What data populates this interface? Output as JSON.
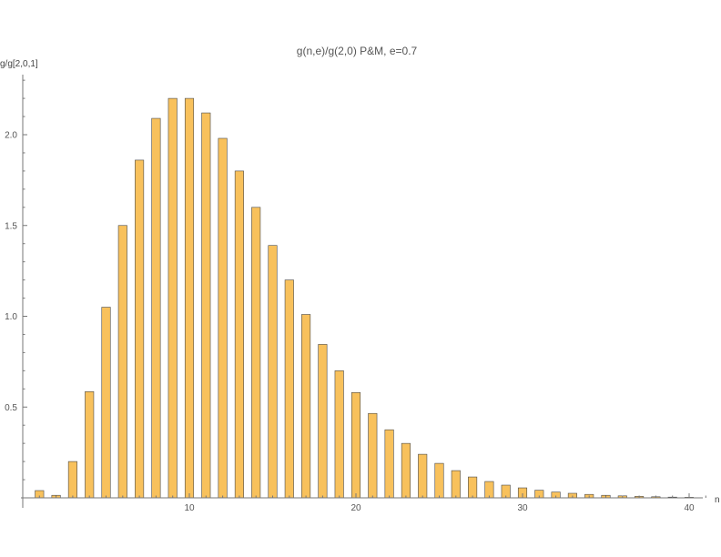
{
  "chart_data": {
    "type": "bar",
    "title": "g(n,e)/g(2,0) P&M, e=0.7",
    "xlabel": "n",
    "ylabel": "g/g[2,0,1]",
    "x": [
      1,
      2,
      3,
      4,
      5,
      6,
      7,
      8,
      9,
      10,
      11,
      12,
      13,
      14,
      15,
      16,
      17,
      18,
      19,
      20,
      21,
      22,
      23,
      24,
      25,
      26,
      27,
      28,
      29,
      30,
      31,
      32,
      33,
      34,
      35,
      36,
      37,
      38,
      39,
      40
    ],
    "values": [
      0.04,
      0.014,
      0.2,
      0.585,
      1.05,
      1.5,
      1.86,
      2.09,
      2.2,
      2.2,
      2.12,
      1.98,
      1.8,
      1.6,
      1.39,
      1.2,
      1.01,
      0.845,
      0.7,
      0.58,
      0.465,
      0.375,
      0.3,
      0.24,
      0.19,
      0.15,
      0.115,
      0.09,
      0.07,
      0.055,
      0.042,
      0.032,
      0.025,
      0.019,
      0.014,
      0.011,
      0.008,
      0.006,
      0.004,
      0.003
    ],
    "xlim": [
      0,
      41
    ],
    "ylim": [
      0,
      2.33
    ],
    "x_ticks": [
      "10",
      "20",
      "30",
      "40"
    ],
    "y_ticks": [
      "0.5",
      "1.0",
      "1.5",
      "2.0"
    ],
    "grid": false,
    "bar_color": "#f8c15c",
    "bar_edge_color": "#4a4a4a",
    "axis_color": "#777777"
  }
}
